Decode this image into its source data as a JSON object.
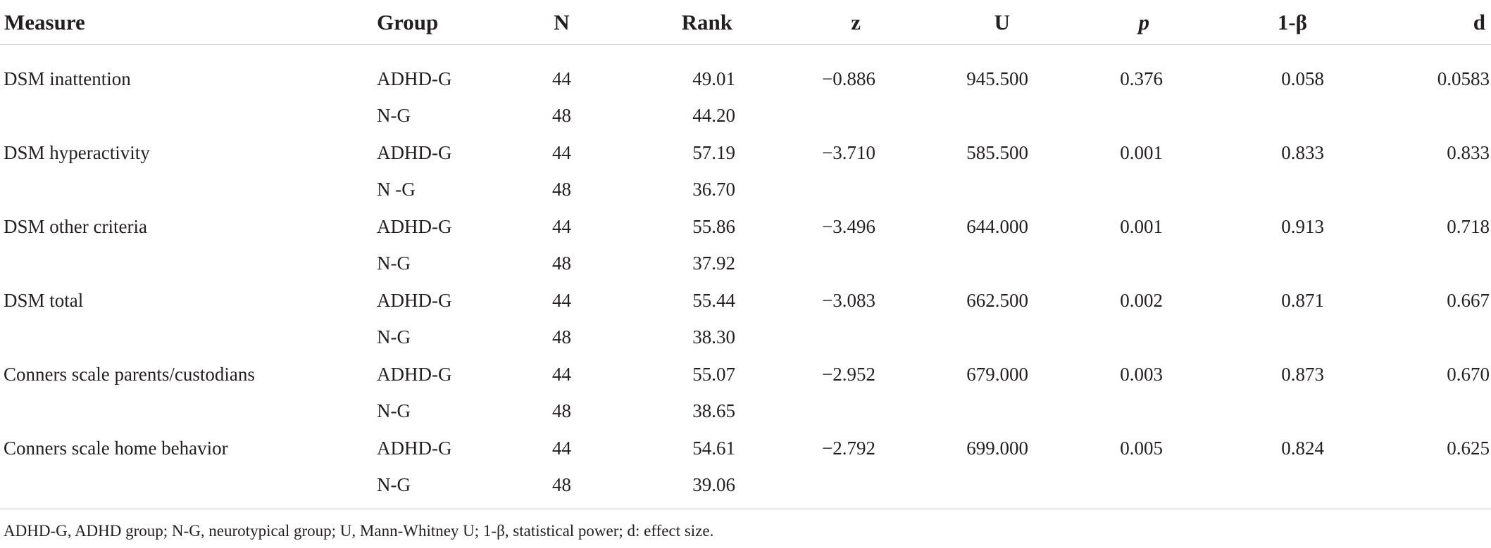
{
  "table": {
    "headers": {
      "measure": "Measure",
      "group": "Group",
      "n": "N",
      "rank": "Rank",
      "z": "z",
      "u": "U",
      "p": "p",
      "power": "1-β",
      "d": "d"
    },
    "rows": [
      {
        "measure": "DSM inattention",
        "group": "ADHD-G",
        "n": "44",
        "rank": "49.01",
        "z": "−0.886",
        "u": "945.500",
        "p": "0.376",
        "power": "0.058",
        "d": "0.0583"
      },
      {
        "measure": "",
        "group": "N-G",
        "n": "48",
        "rank": "44.20",
        "z": "",
        "u": "",
        "p": "",
        "power": "",
        "d": ""
      },
      {
        "measure": "DSM hyperactivity",
        "group": "ADHD-G",
        "n": "44",
        "rank": "57.19",
        "z": "−3.710",
        "u": "585.500",
        "p": "0.001",
        "power": "0.833",
        "d": "0.833"
      },
      {
        "measure": "",
        "group": "N -G",
        "n": "48",
        "rank": "36.70",
        "z": "",
        "u": "",
        "p": "",
        "power": "",
        "d": ""
      },
      {
        "measure": "DSM other criteria",
        "group": "ADHD-G",
        "n": "44",
        "rank": "55.86",
        "z": "−3.496",
        "u": "644.000",
        "p": "0.001",
        "power": "0.913",
        "d": "0.718"
      },
      {
        "measure": "",
        "group": "N-G",
        "n": "48",
        "rank": "37.92",
        "z": "",
        "u": "",
        "p": "",
        "power": "",
        "d": ""
      },
      {
        "measure": "DSM total",
        "group": "ADHD-G",
        "n": "44",
        "rank": "55.44",
        "z": "−3.083",
        "u": "662.500",
        "p": "0.002",
        "power": "0.871",
        "d": "0.667"
      },
      {
        "measure": "",
        "group": "N-G",
        "n": "48",
        "rank": "38.30",
        "z": "",
        "u": "",
        "p": "",
        "power": "",
        "d": ""
      },
      {
        "measure": "Conners scale parents/custodians",
        "group": "ADHD-G",
        "n": "44",
        "rank": "55.07",
        "z": "−2.952",
        "u": "679.000",
        "p": "0.003",
        "power": "0.873",
        "d": "0.670"
      },
      {
        "measure": "",
        "group": "N-G",
        "n": "48",
        "rank": "38.65",
        "z": "",
        "u": "",
        "p": "",
        "power": "",
        "d": ""
      },
      {
        "measure": "Conners scale home behavior",
        "group": "ADHD-G",
        "n": "44",
        "rank": "54.61",
        "z": "−2.792",
        "u": "699.000",
        "p": "0.005",
        "power": "0.824",
        "d": "0.625"
      },
      {
        "measure": "",
        "group": "N-G",
        "n": "48",
        "rank": "39.06",
        "z": "",
        "u": "",
        "p": "",
        "power": "",
        "d": ""
      }
    ]
  },
  "footnote": "ADHD-G, ADHD group; N-G, neurotypical group; U, Mann-Whitney U; 1-β, statistical power; d: effect size."
}
